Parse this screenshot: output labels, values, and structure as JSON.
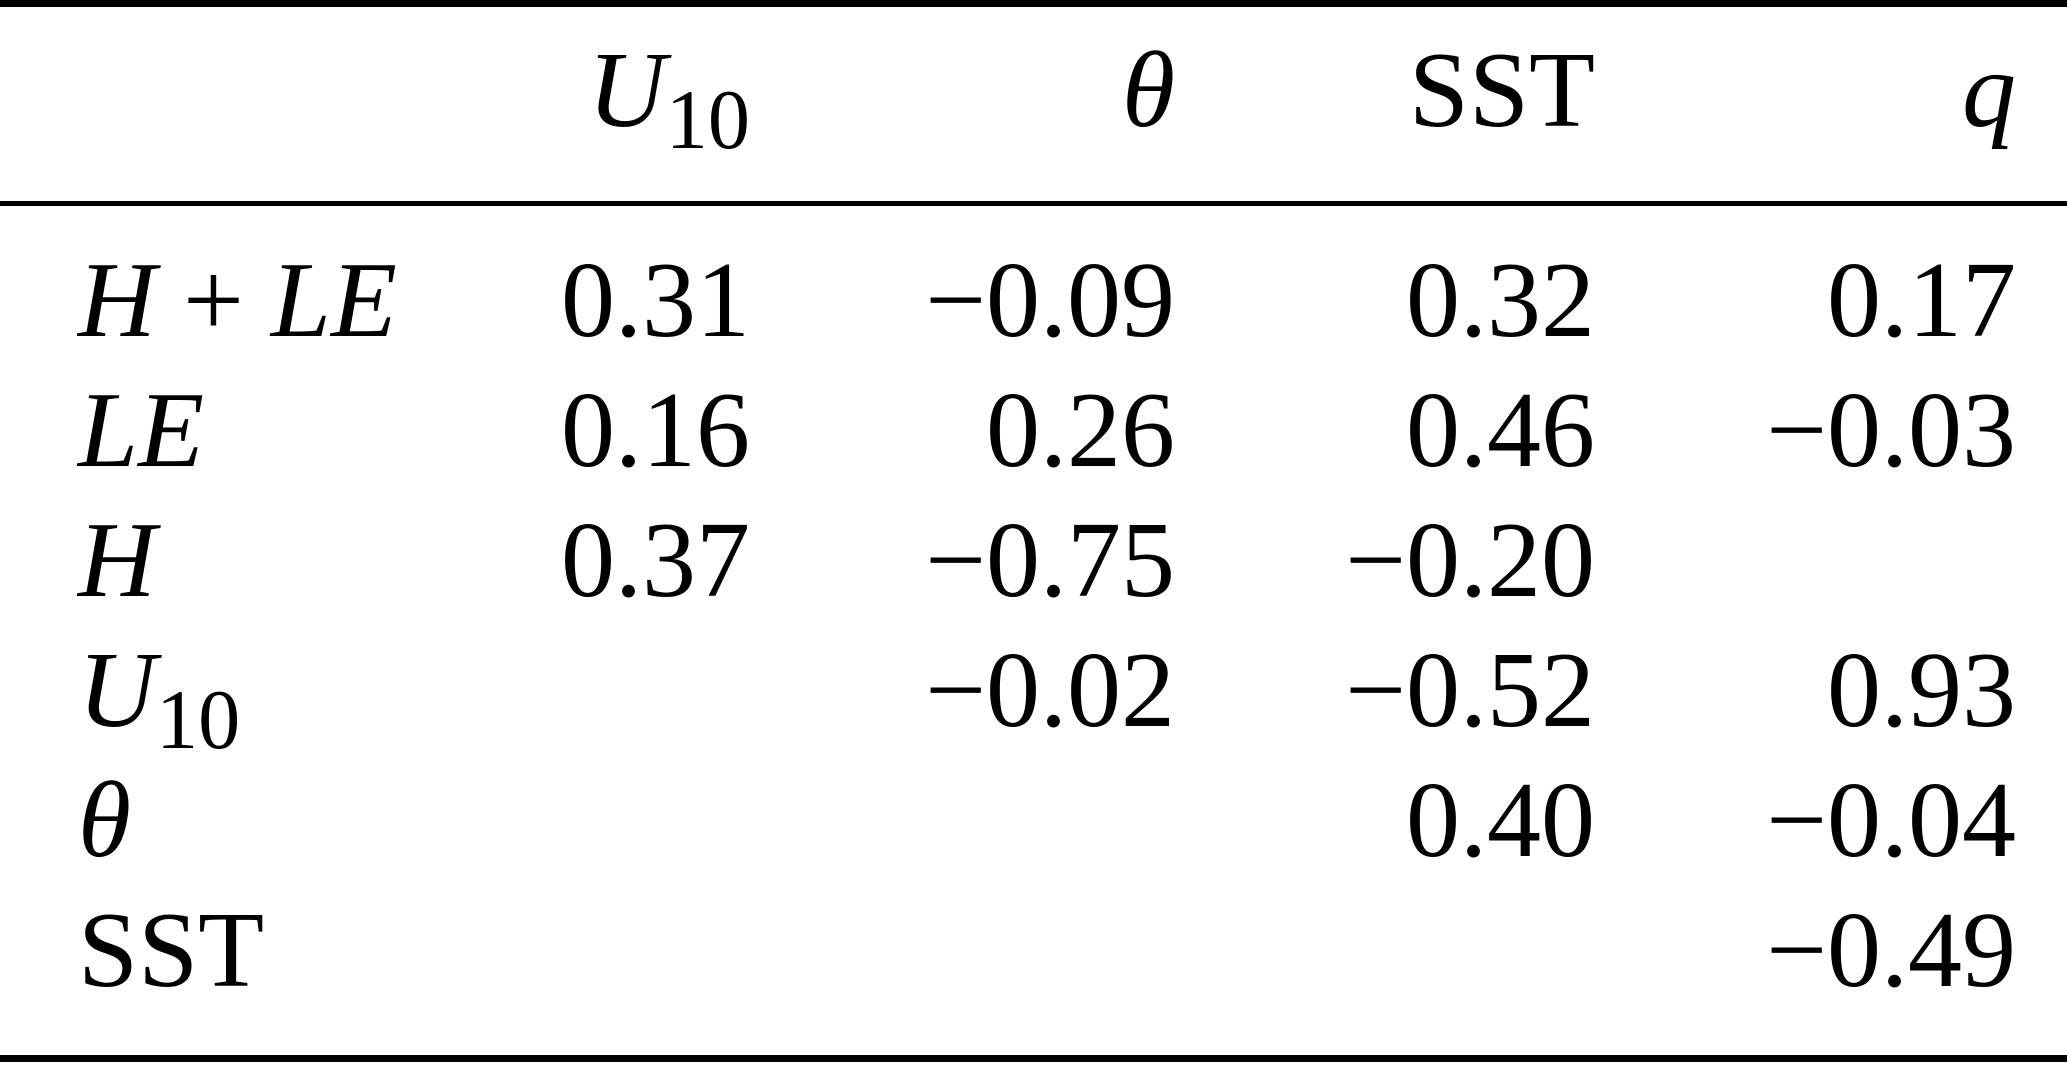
{
  "figure": {
    "background": "#ffffff",
    "text_color": "#000000",
    "rule_color": "#000000"
  },
  "table": {
    "corner_label": "",
    "columns": [
      {
        "name": "u10",
        "label": [
          {
            "text": "U",
            "style": "math"
          },
          {
            "text": "10",
            "style": "sub"
          }
        ]
      },
      {
        "name": "theta",
        "label": [
          {
            "text": "θ",
            "style": "math"
          }
        ]
      },
      {
        "name": "sst",
        "label": [
          {
            "text": "SST",
            "style": "roman"
          }
        ]
      },
      {
        "name": "q",
        "label": [
          {
            "text": "q",
            "style": "math"
          }
        ]
      }
    ],
    "rows": [
      {
        "name": "h-plus-le",
        "label": [
          {
            "text": "H",
            "style": "math"
          },
          {
            "text": " + ",
            "style": "roman"
          },
          {
            "text": "LE",
            "style": "math"
          }
        ],
        "values": [
          "0.31",
          "−0.09",
          "0.32",
          "0.17"
        ]
      },
      {
        "name": "le",
        "label": [
          {
            "text": "LE",
            "style": "math"
          }
        ],
        "values": [
          "0.16",
          "0.26",
          "0.46",
          "−0.03"
        ]
      },
      {
        "name": "h",
        "label": [
          {
            "text": "H",
            "style": "math"
          }
        ],
        "values": [
          "0.37",
          "−0.75",
          "−0.20",
          ""
        ]
      },
      {
        "name": "u10",
        "label": [
          {
            "text": "U",
            "style": "math"
          },
          {
            "text": "10",
            "style": "sub"
          }
        ],
        "values": [
          "",
          "−0.02",
          "−0.52",
          "0.93"
        ]
      },
      {
        "name": "theta",
        "label": [
          {
            "text": "θ",
            "style": "math"
          }
        ],
        "values": [
          "",
          "",
          "0.40",
          "−0.04"
        ]
      },
      {
        "name": "sst",
        "label": [
          {
            "text": "SST",
            "style": "roman"
          }
        ],
        "values": [
          "",
          "",
          "",
          "−0.49"
        ]
      }
    ]
  }
}
